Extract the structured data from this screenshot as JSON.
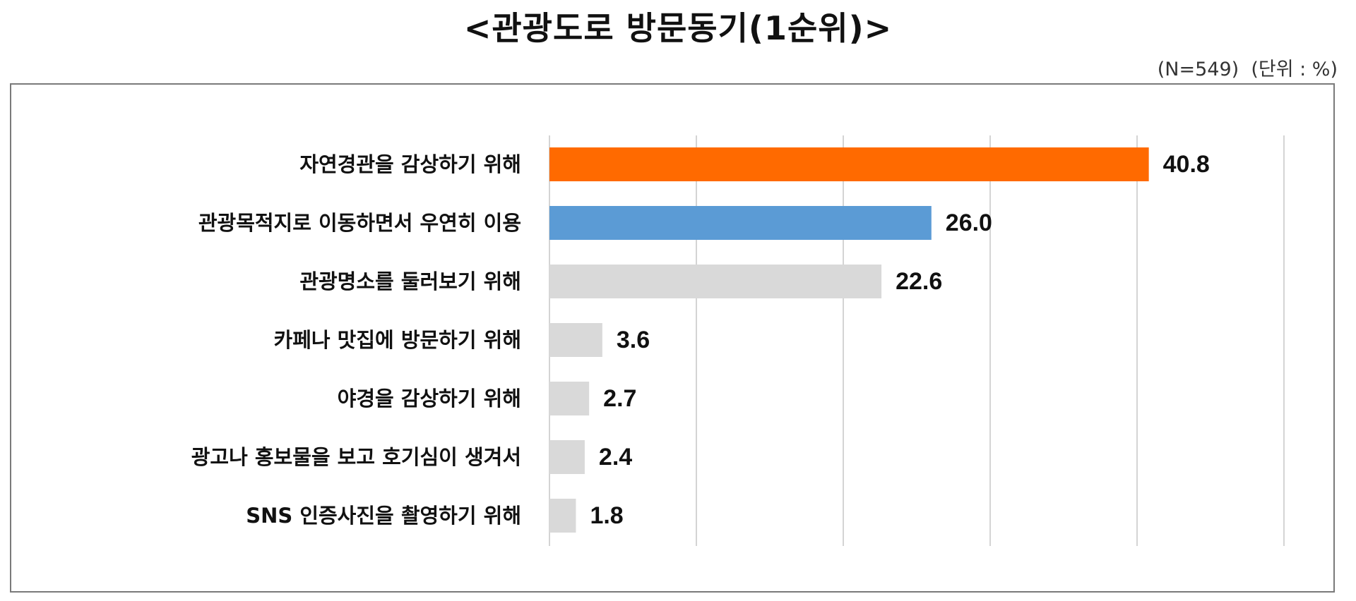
{
  "title": "<관광도로 방문동기(1순위)>",
  "note": "(N=549)  (단위 : %)",
  "chart_data": {
    "type": "bar",
    "orientation": "horizontal",
    "categories": [
      "자연경관을 감상하기 위해",
      "관광목적지로 이동하면서 우연히 이용",
      "관광명소를 둘러보기 위해",
      "카페나 맛집에 방문하기 위해",
      "야경을 감상하기 위해",
      "광고나 홍보물을 보고 호기심이 생겨서",
      "SNS 인증사진을 촬영하기 위해"
    ],
    "values": [
      40.8,
      26.0,
      22.6,
      3.6,
      2.7,
      2.4,
      1.8
    ],
    "value_labels": [
      "40.8",
      "26.0",
      "22.6",
      "3.6",
      "2.7",
      "2.4",
      "1.8"
    ],
    "bar_colors": [
      "#ff6a00",
      "#5b9bd5",
      "#d9d9d9",
      "#d9d9d9",
      "#d9d9d9",
      "#d9d9d9",
      "#d9d9d9"
    ],
    "xlim": [
      0,
      50
    ],
    "gridlines": "vertical",
    "xlabel": "",
    "ylabel": ""
  }
}
